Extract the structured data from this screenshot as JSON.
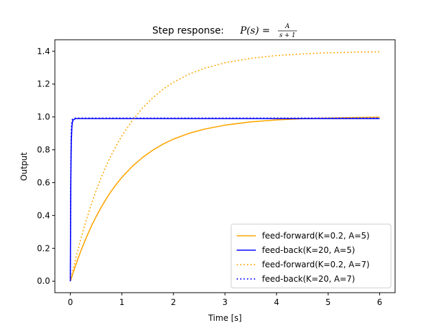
{
  "chart_data": {
    "type": "line",
    "title": {
      "prefix": "Step response: ",
      "math_lhs": "P(s) = ",
      "numerator": "A",
      "denominator": "s + 1"
    },
    "xlabel": "Time [s]",
    "ylabel": "Output",
    "xlim": [
      -0.3,
      6.3
    ],
    "ylim": [
      -0.07,
      1.47
    ],
    "xticks": [
      0,
      1,
      2,
      3,
      4,
      5,
      6
    ],
    "yticks": [
      0.0,
      0.2,
      0.4,
      0.6,
      0.8,
      1.0,
      1.2,
      1.4
    ],
    "ytick_labels": [
      "0.0",
      "0.2",
      "0.4",
      "0.6",
      "0.8",
      "1.0",
      "1.2",
      "1.4"
    ],
    "grid": false,
    "legend_position": "lower-right",
    "series": [
      {
        "name": "feed-forward(K=0.2, A=5)",
        "color": "#FFA500",
        "style": "solid",
        "x": [
          0,
          0.1,
          0.2,
          0.3,
          0.4,
          0.5,
          0.6,
          0.7,
          0.8,
          0.9,
          1.0,
          1.2,
          1.4,
          1.6,
          1.8,
          2.0,
          2.3,
          2.6,
          3.0,
          3.5,
          4.0,
          4.5,
          5.0,
          5.5,
          6.0
        ],
        "y": [
          0,
          0.095,
          0.181,
          0.259,
          0.33,
          0.393,
          0.451,
          0.503,
          0.551,
          0.593,
          0.632,
          0.699,
          0.753,
          0.798,
          0.835,
          0.865,
          0.9,
          0.926,
          0.95,
          0.97,
          0.982,
          0.989,
          0.993,
          0.996,
          0.998
        ]
      },
      {
        "name": "feed-back(K=20, A=5)",
        "color": "#0000FF",
        "style": "solid",
        "x": [
          0,
          0.005,
          0.01,
          0.015,
          0.02,
          0.03,
          0.04,
          0.05,
          0.06,
          0.08,
          0.1,
          0.2,
          1.0,
          2.0,
          3.0,
          4.0,
          5.0,
          6.0
        ],
        "y": [
          0,
          0.391,
          0.628,
          0.772,
          0.859,
          0.938,
          0.967,
          0.978,
          0.983,
          0.986,
          0.99,
          0.99,
          0.99,
          0.99,
          0.99,
          0.99,
          0.99,
          0.99
        ]
      },
      {
        "name": "feed-forward(K=0.2, A=7)",
        "color": "#FFA500",
        "style": "dotted",
        "x": [
          0,
          0.1,
          0.2,
          0.3,
          0.4,
          0.5,
          0.6,
          0.7,
          0.8,
          0.9,
          1.0,
          1.2,
          1.4,
          1.6,
          1.8,
          2.0,
          2.3,
          2.6,
          3.0,
          3.5,
          4.0,
          4.5,
          5.0,
          5.5,
          6.0
        ],
        "y": [
          0,
          0.133,
          0.254,
          0.363,
          0.462,
          0.551,
          0.632,
          0.705,
          0.771,
          0.83,
          0.885,
          0.978,
          1.054,
          1.117,
          1.169,
          1.211,
          1.26,
          1.296,
          1.33,
          1.357,
          1.374,
          1.384,
          1.391,
          1.394,
          1.397
        ]
      },
      {
        "name": "feed-back(K=20, A=7)",
        "color": "#0000FF",
        "style": "dotted",
        "x": [
          0,
          0.005,
          0.01,
          0.015,
          0.02,
          0.03,
          0.04,
          0.05,
          0.06,
          0.08,
          0.1,
          0.2,
          1.0,
          2.0,
          3.0,
          4.0,
          5.0,
          6.0
        ],
        "y": [
          0,
          0.502,
          0.749,
          0.873,
          0.934,
          0.976,
          0.986,
          0.989,
          0.991,
          0.992,
          0.993,
          0.993,
          0.993,
          0.993,
          0.993,
          0.993,
          0.993,
          0.993
        ]
      }
    ]
  }
}
